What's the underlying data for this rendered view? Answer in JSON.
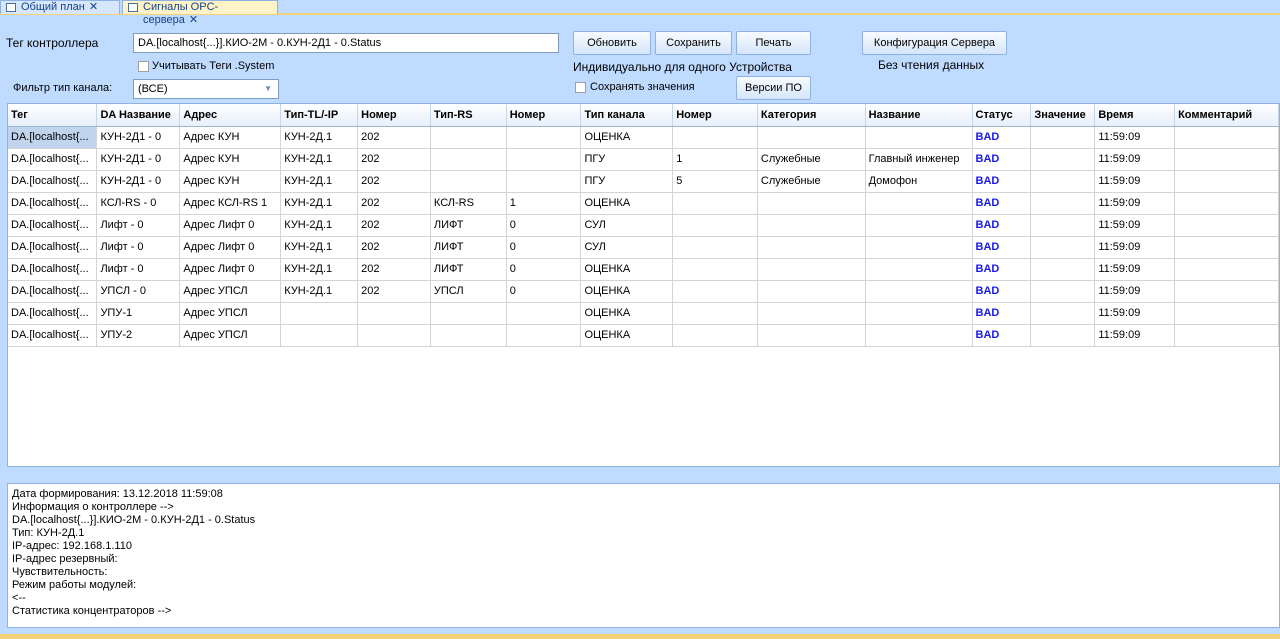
{
  "tabs": [
    {
      "label": "Общий план",
      "close": "✕"
    },
    {
      "label": "Сигналы OPC-сервера",
      "close": "✕"
    }
  ],
  "form": {
    "tag_label": "Тег контроллера",
    "tag_value": "DA.[localhost{...}].КИО-2М - 0.КУН-2Д1 - 0.Status",
    "system_tags_label": "Учитывать Теги .System",
    "filter_label": "Фильтр тип канала:",
    "filter_value": "(ВСЕ)",
    "refresh": "Обновить",
    "save": "Сохранить",
    "print": "Печать",
    "server_config": "Конфигурация Сервера",
    "individual_label": "Индивидуально для одного Устройства",
    "save_values_label": "Сохранять значения",
    "versions": "Версии ПО",
    "no_read_label": "Без чтения данных"
  },
  "table": {
    "columns": [
      "Тег",
      "DA Название",
      "Адрес",
      "Тип-TL/-IP",
      "Номер",
      "Тип-RS",
      "Номер",
      "Тип канала",
      "Номер",
      "Категория",
      "Название",
      "Статус",
      "Значение",
      "Время",
      "Комментарий"
    ],
    "rows": [
      [
        "DA.[localhost{...",
        "КУН-2Д1 - 0",
        "Адрес КУН",
        "КУН-2Д.1",
        "202",
        "",
        "",
        "ОЦЕНКА",
        "",
        "",
        "",
        "BAD",
        "",
        "11:59:09",
        ""
      ],
      [
        "DA.[localhost{...",
        "КУН-2Д1 - 0",
        "Адрес КУН",
        "КУН-2Д.1",
        "202",
        "",
        "",
        "ПГУ",
        "1",
        "Служебные",
        "Главный инженер",
        "BAD",
        "",
        "11:59:09",
        ""
      ],
      [
        "DA.[localhost{...",
        "КУН-2Д1 - 0",
        "Адрес КУН",
        "КУН-2Д.1",
        "202",
        "",
        "",
        "ПГУ",
        "5",
        "Служебные",
        "Домофон",
        "BAD",
        "",
        "11:59:09",
        ""
      ],
      [
        "DA.[localhost{...",
        "КСЛ-RS - 0",
        "Адрес КСЛ-RS 1",
        "КУН-2Д.1",
        "202",
        "КСЛ-RS",
        "1",
        "ОЦЕНКА",
        "",
        "",
        "",
        "BAD",
        "",
        "11:59:09",
        ""
      ],
      [
        "DA.[localhost{...",
        "Лифт - 0",
        "Адрес Лифт 0",
        "КУН-2Д.1",
        "202",
        "ЛИФТ",
        "0",
        "СУЛ",
        "",
        "",
        "",
        "BAD",
        "",
        "11:59:09",
        ""
      ],
      [
        "DA.[localhost{...",
        "Лифт - 0",
        "Адрес Лифт 0",
        "КУН-2Д.1",
        "202",
        "ЛИФТ",
        "0",
        "СУЛ",
        "",
        "",
        "",
        "BAD",
        "",
        "11:59:09",
        ""
      ],
      [
        "DA.[localhost{...",
        "Лифт - 0",
        "Адрес Лифт 0",
        "КУН-2Д.1",
        "202",
        "ЛИФТ",
        "0",
        "ОЦЕНКА",
        "",
        "",
        "",
        "BAD",
        "",
        "11:59:09",
        ""
      ],
      [
        "DA.[localhost{...",
        "УПСЛ - 0",
        "Адрес УПСЛ",
        "КУН-2Д.1",
        "202",
        "УПСЛ",
        "0",
        "ОЦЕНКА",
        "",
        "",
        "",
        "BAD",
        "",
        "11:59:09",
        ""
      ],
      [
        "DA.[localhost{...",
        "УПУ-1",
        "Адрес УПСЛ",
        "",
        "",
        "",
        "",
        "ОЦЕНКА",
        "",
        "",
        "",
        "BAD",
        "",
        "11:59:09",
        ""
      ],
      [
        "DA.[localhost{...",
        "УПУ-2",
        "Адрес УПСЛ",
        "",
        "",
        "",
        "",
        "ОЦЕНКА",
        "",
        "",
        "",
        "BAD",
        "",
        "11:59:09",
        ""
      ]
    ]
  },
  "log": {
    "lines": [
      "Дата формирования: 13.12.2018 11:59:08",
      "Информация о контроллере -->",
      "DA.[localhost{...}].КИО-2М - 0.КУН-2Д1 - 0.Status",
      "Тип: КУН-2Д.1",
      "IP-адрес: 192.168.1.110",
      "IP-адрес резервный:",
      "Чувствительность:",
      "Режим работы модулей:",
      "<--",
      "Статистика концентраторов  -->"
    ]
  },
  "colors": {
    "status_bad": "#1a1ae6",
    "background": "#bfdbff"
  }
}
